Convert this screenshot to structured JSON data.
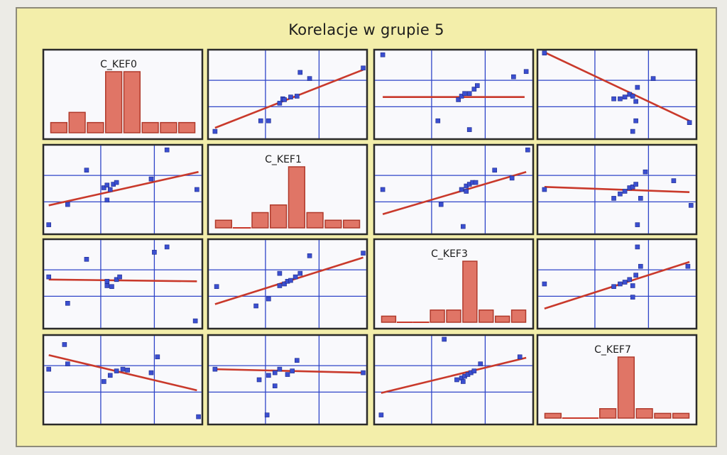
{
  "title": "Korelacje w grupie 5",
  "chart_data": {
    "type": "scatter-matrix",
    "title": "Korelacje w grupie 5",
    "variables": [
      "C_KEF0",
      "C_KEF1",
      "C_KEF3",
      "C_KEF7"
    ],
    "grid": true,
    "colors": {
      "points": "#3b4fd0",
      "fit_line": "#c9392b",
      "histogram": "#e07566",
      "gridline": "#2f45c8"
    },
    "histograms": {
      "C_KEF0": [
        1,
        2,
        1,
        6,
        6,
        1,
        1,
        1
      ],
      "C_KEF1": [
        1,
        0,
        2,
        3,
        8,
        2,
        1,
        1
      ],
      "C_KEF3": [
        1,
        0,
        0,
        2,
        2,
        10,
        2,
        1,
        2
      ],
      "C_KEF7": [
        1,
        0,
        0,
        2,
        13,
        2,
        1,
        1
      ]
    },
    "scatter": [
      {
        "row": 0,
        "col": 1,
        "fit": [
          [
            0.04,
            0.12
          ],
          [
            0.98,
            0.78
          ]
        ],
        "points": [
          [
            0.04,
            0.08
          ],
          [
            0.33,
            0.2
          ],
          [
            0.38,
            0.2
          ],
          [
            0.45,
            0.4
          ],
          [
            0.47,
            0.45
          ],
          [
            0.48,
            0.44
          ],
          [
            0.52,
            0.47
          ],
          [
            0.56,
            0.48
          ],
          [
            0.58,
            0.75
          ],
          [
            0.64,
            0.68
          ],
          [
            0.98,
            0.8
          ]
        ]
      },
      {
        "row": 0,
        "col": 2,
        "fit": [
          [
            0.05,
            0.47
          ],
          [
            0.95,
            0.47
          ]
        ],
        "points": [
          [
            0.05,
            0.95
          ],
          [
            0.4,
            0.2
          ],
          [
            0.53,
            0.44
          ],
          [
            0.55,
            0.48
          ],
          [
            0.57,
            0.51
          ],
          [
            0.6,
            0.51
          ],
          [
            0.63,
            0.56
          ],
          [
            0.65,
            0.6
          ],
          [
            0.6,
            0.1
          ],
          [
            0.88,
            0.7
          ],
          [
            0.96,
            0.76
          ]
        ]
      },
      {
        "row": 0,
        "col": 3,
        "fit": [
          [
            0.05,
            0.97
          ],
          [
            0.96,
            0.2
          ]
        ],
        "points": [
          [
            0.04,
            0.97
          ],
          [
            0.48,
            0.45
          ],
          [
            0.52,
            0.45
          ],
          [
            0.55,
            0.47
          ],
          [
            0.58,
            0.5
          ],
          [
            0.6,
            0.48
          ],
          [
            0.62,
            0.42
          ],
          [
            0.63,
            0.58
          ],
          [
            0.62,
            0.2
          ],
          [
            0.6,
            0.08
          ],
          [
            0.73,
            0.68
          ],
          [
            0.96,
            0.18
          ]
        ]
      },
      {
        "row": 1,
        "col": 0,
        "fit": [
          [
            0.03,
            0.32
          ],
          [
            0.98,
            0.7
          ]
        ],
        "points": [
          [
            0.03,
            0.1
          ],
          [
            0.15,
            0.33
          ],
          [
            0.27,
            0.72
          ],
          [
            0.38,
            0.52
          ],
          [
            0.4,
            0.55
          ],
          [
            0.42,
            0.5
          ],
          [
            0.44,
            0.56
          ],
          [
            0.46,
            0.58
          ],
          [
            0.4,
            0.38
          ],
          [
            0.68,
            0.62
          ],
          [
            0.78,
            0.95
          ],
          [
            0.97,
            0.5
          ]
        ]
      },
      {
        "row": 1,
        "col": 2,
        "fit": [
          [
            0.05,
            0.22
          ],
          [
            0.96,
            0.7
          ]
        ],
        "points": [
          [
            0.05,
            0.5
          ],
          [
            0.42,
            0.33
          ],
          [
            0.55,
            0.5
          ],
          [
            0.58,
            0.54
          ],
          [
            0.6,
            0.56
          ],
          [
            0.62,
            0.58
          ],
          [
            0.64,
            0.58
          ],
          [
            0.58,
            0.48
          ],
          [
            0.56,
            0.08
          ],
          [
            0.76,
            0.72
          ],
          [
            0.87,
            0.63
          ],
          [
            0.97,
            0.95
          ]
        ]
      },
      {
        "row": 1,
        "col": 3,
        "fit": [
          [
            0.04,
            0.53
          ],
          [
            0.96,
            0.47
          ]
        ],
        "points": [
          [
            0.04,
            0.5
          ],
          [
            0.48,
            0.4
          ],
          [
            0.52,
            0.45
          ],
          [
            0.55,
            0.48
          ],
          [
            0.58,
            0.52
          ],
          [
            0.6,
            0.53
          ],
          [
            0.62,
            0.56
          ],
          [
            0.65,
            0.4
          ],
          [
            0.63,
            0.1
          ],
          [
            0.68,
            0.7
          ],
          [
            0.86,
            0.6
          ],
          [
            0.97,
            0.32
          ]
        ]
      },
      {
        "row": 2,
        "col": 0,
        "fit": [
          [
            0.03,
            0.55
          ],
          [
            0.97,
            0.53
          ]
        ],
        "points": [
          [
            0.03,
            0.58
          ],
          [
            0.15,
            0.28
          ],
          [
            0.27,
            0.78
          ],
          [
            0.4,
            0.48
          ],
          [
            0.43,
            0.47
          ],
          [
            0.46,
            0.55
          ],
          [
            0.48,
            0.58
          ],
          [
            0.4,
            0.53
          ],
          [
            0.7,
            0.86
          ],
          [
            0.78,
            0.92
          ],
          [
            0.96,
            0.08
          ]
        ]
      },
      {
        "row": 2,
        "col": 1,
        "fit": [
          [
            0.04,
            0.27
          ],
          [
            0.98,
            0.8
          ]
        ],
        "points": [
          [
            0.05,
            0.47
          ],
          [
            0.3,
            0.25
          ],
          [
            0.38,
            0.33
          ],
          [
            0.45,
            0.48
          ],
          [
            0.48,
            0.5
          ],
          [
            0.5,
            0.53
          ],
          [
            0.52,
            0.54
          ],
          [
            0.55,
            0.58
          ],
          [
            0.58,
            0.62
          ],
          [
            0.45,
            0.62
          ],
          [
            0.64,
            0.82
          ],
          [
            0.98,
            0.85
          ]
        ]
      },
      {
        "row": 2,
        "col": 3,
        "fit": [
          [
            0.04,
            0.22
          ],
          [
            0.96,
            0.75
          ]
        ],
        "points": [
          [
            0.04,
            0.5
          ],
          [
            0.48,
            0.47
          ],
          [
            0.52,
            0.5
          ],
          [
            0.55,
            0.52
          ],
          [
            0.58,
            0.55
          ],
          [
            0.6,
            0.48
          ],
          [
            0.62,
            0.6
          ],
          [
            0.65,
            0.7
          ],
          [
            0.6,
            0.35
          ],
          [
            0.63,
            0.92
          ],
          [
            0.95,
            0.7
          ]
        ]
      },
      {
        "row": 3,
        "col": 0,
        "fit": [
          [
            0.03,
            0.78
          ],
          [
            0.97,
            0.38
          ]
        ],
        "points": [
          [
            0.03,
            0.62
          ],
          [
            0.13,
            0.9
          ],
          [
            0.15,
            0.68
          ],
          [
            0.38,
            0.48
          ],
          [
            0.42,
            0.55
          ],
          [
            0.46,
            0.6
          ],
          [
            0.5,
            0.62
          ],
          [
            0.53,
            0.61
          ],
          [
            0.68,
            0.58
          ],
          [
            0.72,
            0.76
          ],
          [
            0.98,
            0.08
          ]
        ]
      },
      {
        "row": 3,
        "col": 1,
        "fit": [
          [
            0.04,
            0.62
          ],
          [
            0.98,
            0.58
          ]
        ],
        "points": [
          [
            0.04,
            0.62
          ],
          [
            0.32,
            0.5
          ],
          [
            0.38,
            0.55
          ],
          [
            0.42,
            0.58
          ],
          [
            0.45,
            0.62
          ],
          [
            0.5,
            0.56
          ],
          [
            0.53,
            0.6
          ],
          [
            0.37,
            0.1
          ],
          [
            0.42,
            0.43
          ],
          [
            0.56,
            0.72
          ],
          [
            0.98,
            0.58
          ]
        ]
      },
      {
        "row": 3,
        "col": 2,
        "fit": [
          [
            0.04,
            0.35
          ],
          [
            0.96,
            0.75
          ]
        ],
        "points": [
          [
            0.04,
            0.1
          ],
          [
            0.52,
            0.5
          ],
          [
            0.55,
            0.52
          ],
          [
            0.57,
            0.54
          ],
          [
            0.59,
            0.56
          ],
          [
            0.61,
            0.58
          ],
          [
            0.63,
            0.6
          ],
          [
            0.56,
            0.48
          ],
          [
            0.67,
            0.68
          ],
          [
            0.44,
            0.96
          ],
          [
            0.92,
            0.76
          ]
        ]
      }
    ]
  }
}
